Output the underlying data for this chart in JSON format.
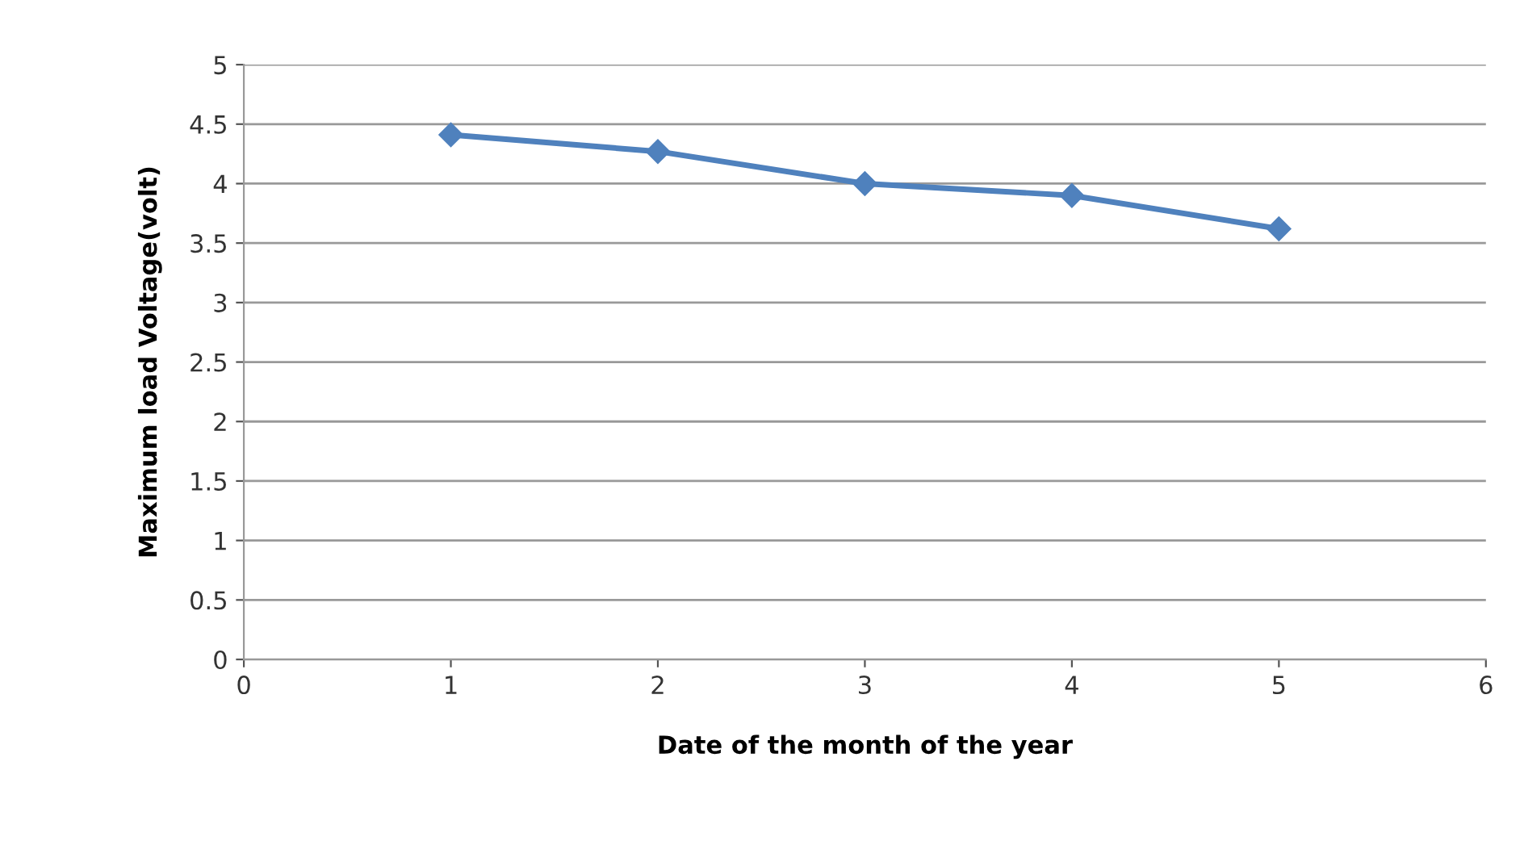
{
  "chart_data": {
    "type": "line",
    "xlabel": "Date of the month of the year",
    "ylabel": "Maximum load Voltage(volt)",
    "x": [
      1,
      2,
      3,
      4,
      5
    ],
    "series": [
      {
        "color": "#4f81bd",
        "values": [
          4.41,
          4.27,
          4.0,
          3.9,
          3.62
        ]
      }
    ],
    "xlim": [
      0,
      6
    ],
    "xticks": [
      0,
      1,
      2,
      3,
      4,
      5,
      6
    ],
    "ylim": [
      0,
      5
    ],
    "yticks": [
      0,
      0.5,
      1,
      1.5,
      2,
      2.5,
      3,
      3.5,
      4,
      4.5,
      5
    ],
    "grid": "y",
    "marker": "diamond",
    "line_style": "solid",
    "legend": false
  }
}
